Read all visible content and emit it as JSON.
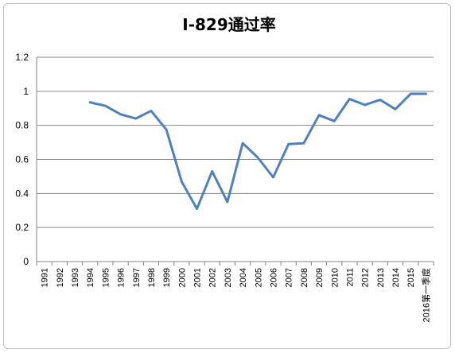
{
  "chart_data": {
    "type": "line",
    "title": "I-829通过率",
    "xlabel": "",
    "ylabel": "",
    "ylim": [
      0,
      1.2
    ],
    "yticks": [
      "0",
      "0.2",
      "0.4",
      "0.6",
      "0.8",
      "1",
      "1.2"
    ],
    "grid": true,
    "legend": "none",
    "categories": [
      "1991",
      "1992",
      "1993",
      "1994",
      "1995",
      "1996",
      "1997",
      "1998",
      "1999",
      "2000",
      "2001",
      "2002",
      "2003",
      "2004",
      "2005",
      "2006",
      "2007",
      "2008",
      "2009",
      "2010",
      "2011",
      "2012",
      "2013",
      "2014",
      "2015",
      "2016第一季度"
    ],
    "series": [
      {
        "color": "#4f81bd",
        "values": [
          null,
          null,
          null,
          0.935,
          0.915,
          0.865,
          0.84,
          0.885,
          0.775,
          0.47,
          0.31,
          0.53,
          0.35,
          0.695,
          0.61,
          0.495,
          0.69,
          0.695,
          0.86,
          0.825,
          0.955,
          0.92,
          0.95,
          0.895,
          0.985,
          0.985
        ]
      }
    ]
  }
}
